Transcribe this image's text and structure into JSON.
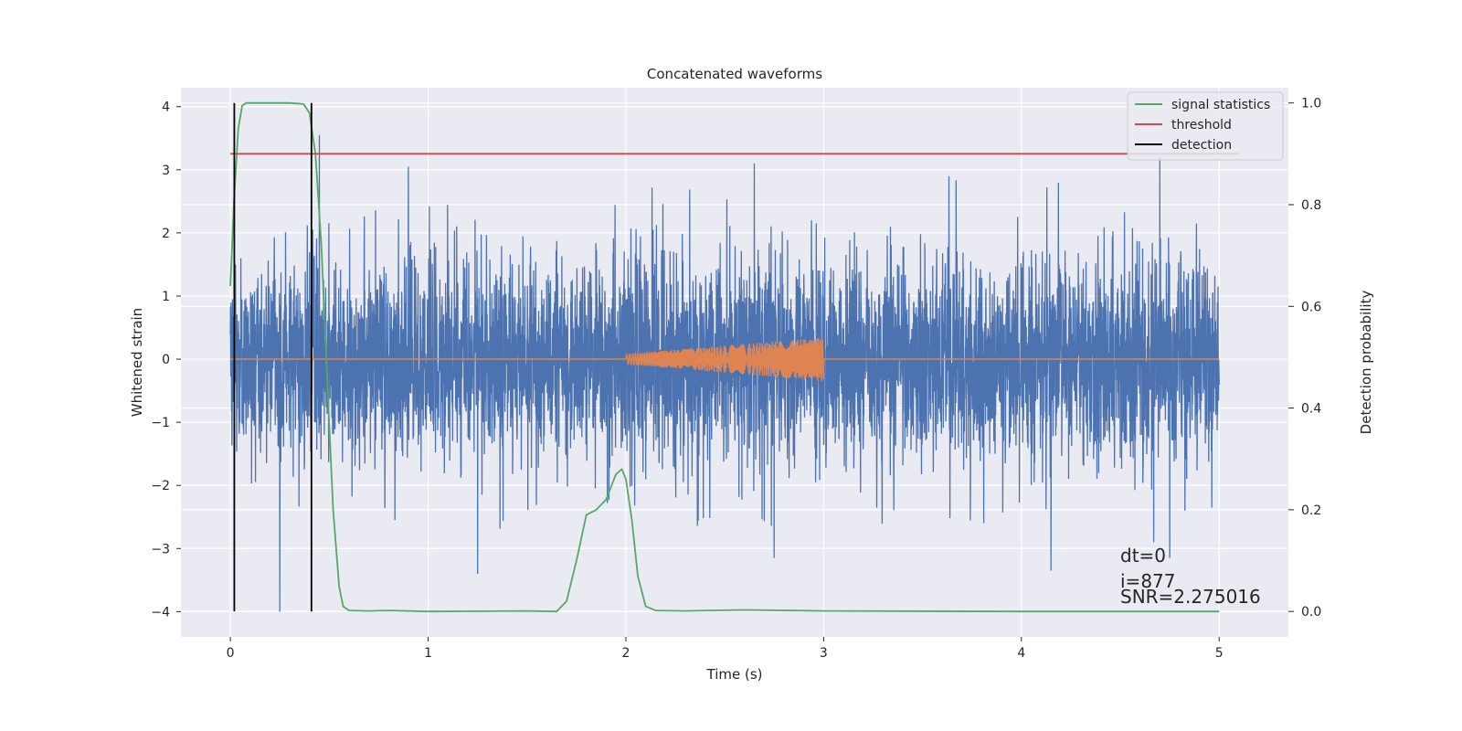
{
  "chart_data": {
    "type": "line",
    "title": "Concatenated waveforms",
    "xlabel": "Time (s)",
    "ylabel_left": "Whitened strain",
    "ylabel_right": "Detection probability",
    "xlim": [
      -0.25,
      5.35
    ],
    "ylim_left": [
      -4.4,
      4.3
    ],
    "ylim_right": [
      -0.05,
      1.03
    ],
    "x_ticks": [
      0,
      1,
      2,
      3,
      4,
      5
    ],
    "x_tick_labels": [
      "0",
      "1",
      "2",
      "3",
      "4",
      "5"
    ],
    "y_left_ticks": [
      4,
      3,
      2,
      1,
      0,
      -1,
      -2,
      -3,
      -4
    ],
    "y_left_tick_labels": [
      "4",
      "3",
      "2",
      "1",
      "0",
      "−1",
      "−2",
      "−3",
      "−4"
    ],
    "y_right_ticks": [
      1.0,
      0.8,
      0.6,
      0.4,
      0.2,
      0.0
    ],
    "y_right_tick_labels": [
      "1.0",
      "0.8",
      "0.6",
      "0.4",
      "0.2",
      "0.0"
    ],
    "grid": true,
    "legend_position": "top-right",
    "series": [
      {
        "name": "",
        "axis": "left",
        "kind": "noise",
        "color": "#4c72b0",
        "x_range": [
          0,
          5
        ],
        "amplitude_std": 0.8,
        "peaks": [
          [
            0.25,
            -4.0
          ],
          [
            0.45,
            3.55
          ],
          [
            0.9,
            3.05
          ],
          [
            1.25,
            -3.4
          ],
          [
            2.65,
            3.1
          ],
          [
            2.75,
            -3.15
          ],
          [
            4.15,
            -3.35
          ],
          [
            4.7,
            3.2
          ],
          [
            4.75,
            -3.15
          ]
        ]
      },
      {
        "name": "",
        "axis": "left",
        "kind": "chirp",
        "color": "#dd8452",
        "x_range": [
          0,
          5
        ],
        "chirp_range": [
          2.0,
          3.0
        ],
        "amplitude_start": 0.08,
        "amplitude_end": 0.35
      },
      {
        "name": "signal statistics",
        "axis": "right",
        "color": "#55a868",
        "x": [
          0.0,
          0.02,
          0.04,
          0.06,
          0.08,
          0.1,
          0.2,
          0.3,
          0.37,
          0.4,
          0.43,
          0.46,
          0.49,
          0.52,
          0.55,
          0.57,
          0.6,
          0.7,
          0.8,
          1.0,
          1.5,
          1.65,
          1.7,
          1.75,
          1.8,
          1.85,
          1.9,
          1.95,
          1.98,
          2.0,
          2.03,
          2.06,
          2.1,
          2.15,
          2.3,
          2.6,
          3.0,
          4.0,
          5.0
        ],
        "y": [
          0.64,
          0.82,
          0.95,
          0.995,
          1.0,
          1.0,
          1.0,
          1.0,
          0.998,
          0.98,
          0.9,
          0.72,
          0.45,
          0.2,
          0.05,
          0.01,
          0.002,
          0.001,
          0.002,
          0.0,
          0.001,
          0.0,
          0.02,
          0.1,
          0.19,
          0.2,
          0.22,
          0.27,
          0.28,
          0.26,
          0.18,
          0.07,
          0.01,
          0.002,
          0.001,
          0.003,
          0.001,
          0.0,
          0.0
        ]
      },
      {
        "name": "threshold",
        "axis": "right",
        "color": "#c44e52",
        "x": [
          0.0,
          5.1
        ],
        "y": [
          0.9,
          0.9
        ]
      },
      {
        "name": "detection",
        "axis": "right",
        "color": "#000000",
        "kind": "vlines",
        "x": [
          0.02,
          0.41
        ],
        "y_range": [
          0.0,
          1.0
        ]
      }
    ],
    "annotations": [
      "dt=0",
      "i=877",
      "SNR=2.275016"
    ]
  }
}
